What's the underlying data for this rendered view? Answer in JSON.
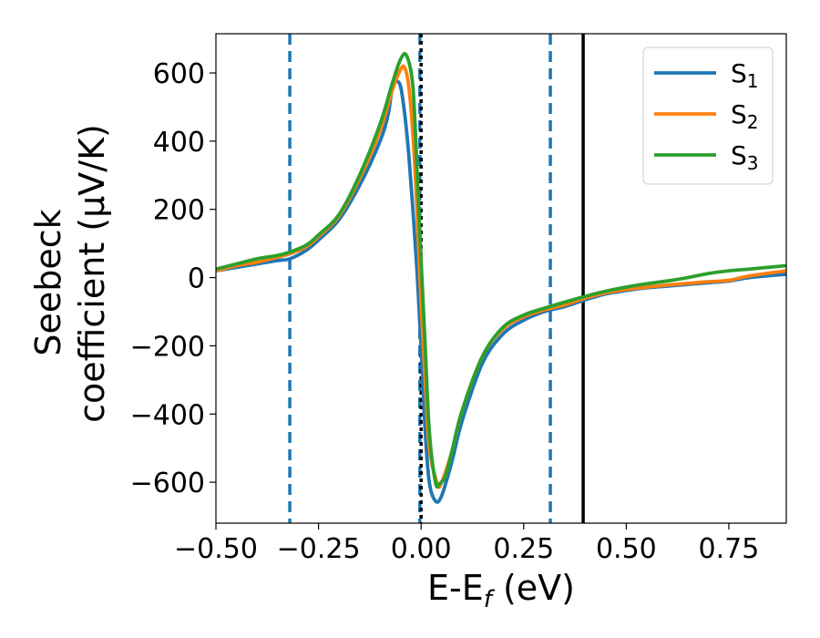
{
  "chart_data": {
    "type": "line",
    "title": "",
    "xlabel": "E-E",
    "xlabel_sub": "f",
    "xlabel_unit": " (eV)",
    "ylabel_line1": "Seebeck",
    "ylabel_line2": "coefficient  (μV/K)",
    "xlim": [
      -0.5,
      0.89
    ],
    "ylim": [
      -720,
      715
    ],
    "xticks": [
      -0.5,
      -0.25,
      0.0,
      0.25,
      0.5,
      0.75
    ],
    "xtick_labels": [
      "−0.50",
      "−0.25",
      "0.00",
      "0.25",
      "0.50",
      "0.75"
    ],
    "yticks": [
      600,
      400,
      200,
      0,
      -200,
      -400,
      -600
    ],
    "ytick_labels": [
      "600",
      "400",
      "200",
      "0",
      "−200",
      "−400",
      "−600"
    ],
    "grid": false,
    "legend_position": "top-right",
    "vlines": [
      {
        "x": -0.32,
        "style": "dashed",
        "color": "#1f77b4"
      },
      {
        "x": 0.315,
        "style": "dashed",
        "color": "#1f77b4"
      },
      {
        "x": -0.003,
        "style": "dashed",
        "color": "#1f77b4"
      },
      {
        "x": 0.0,
        "style": "dotted",
        "color": "#000000"
      },
      {
        "x": 0.395,
        "style": "solid",
        "color": "#000000"
      }
    ],
    "series": [
      {
        "name": "S",
        "sub": "1",
        "color": "#1f77b4",
        "points": [
          [
            -0.5,
            20
          ],
          [
            -0.45,
            30
          ],
          [
            -0.4,
            40
          ],
          [
            -0.35,
            50
          ],
          [
            -0.32,
            55
          ],
          [
            -0.28,
            80
          ],
          [
            -0.25,
            110
          ],
          [
            -0.2,
            170
          ],
          [
            -0.15,
            270
          ],
          [
            -0.1,
            400
          ],
          [
            -0.08,
            480
          ],
          [
            -0.07,
            560
          ],
          [
            -0.06,
            575
          ],
          [
            -0.05,
            560
          ],
          [
            -0.04,
            480
          ],
          [
            -0.03,
            360
          ],
          [
            -0.02,
            200
          ],
          [
            -0.01,
            20
          ],
          [
            0.0,
            -200
          ],
          [
            0.01,
            -450
          ],
          [
            0.02,
            -600
          ],
          [
            0.035,
            -655
          ],
          [
            0.05,
            -640
          ],
          [
            0.075,
            -540
          ],
          [
            0.1,
            -420
          ],
          [
            0.15,
            -250
          ],
          [
            0.2,
            -165
          ],
          [
            0.25,
            -125
          ],
          [
            0.3,
            -100
          ],
          [
            0.35,
            -85
          ],
          [
            0.4,
            -65
          ],
          [
            0.45,
            -48
          ],
          [
            0.5,
            -38
          ],
          [
            0.55,
            -30
          ],
          [
            0.6,
            -25
          ],
          [
            0.65,
            -20
          ],
          [
            0.7,
            -15
          ],
          [
            0.75,
            -10
          ],
          [
            0.8,
            0
          ],
          [
            0.89,
            10
          ]
        ]
      },
      {
        "name": "S",
        "sub": "2",
        "color": "#ff7f0e",
        "points": [
          [
            -0.5,
            20
          ],
          [
            -0.45,
            35
          ],
          [
            -0.4,
            45
          ],
          [
            -0.35,
            60
          ],
          [
            -0.32,
            70
          ],
          [
            -0.28,
            90
          ],
          [
            -0.25,
            120
          ],
          [
            -0.2,
            180
          ],
          [
            -0.15,
            290
          ],
          [
            -0.1,
            430
          ],
          [
            -0.07,
            550
          ],
          [
            -0.05,
            610
          ],
          [
            -0.04,
            615
          ],
          [
            -0.03,
            560
          ],
          [
            -0.02,
            420
          ],
          [
            -0.01,
            200
          ],
          [
            0.0,
            -80
          ],
          [
            0.01,
            -300
          ],
          [
            0.02,
            -500
          ],
          [
            0.04,
            -605
          ],
          [
            0.05,
            -600
          ],
          [
            0.075,
            -510
          ],
          [
            0.1,
            -390
          ],
          [
            0.15,
            -230
          ],
          [
            0.2,
            -150
          ],
          [
            0.25,
            -115
          ],
          [
            0.3,
            -95
          ],
          [
            0.35,
            -80
          ],
          [
            0.4,
            -60
          ],
          [
            0.45,
            -45
          ],
          [
            0.5,
            -35
          ],
          [
            0.55,
            -28
          ],
          [
            0.6,
            -22
          ],
          [
            0.65,
            -17
          ],
          [
            0.7,
            -12
          ],
          [
            0.75,
            -8
          ],
          [
            0.8,
            5
          ],
          [
            0.89,
            20
          ]
        ]
      },
      {
        "name": "S",
        "sub": "3",
        "color": "#2ca02c",
        "points": [
          [
            -0.5,
            25
          ],
          [
            -0.45,
            40
          ],
          [
            -0.4,
            55
          ],
          [
            -0.35,
            65
          ],
          [
            -0.32,
            75
          ],
          [
            -0.28,
            95
          ],
          [
            -0.25,
            125
          ],
          [
            -0.2,
            185
          ],
          [
            -0.15,
            300
          ],
          [
            -0.1,
            450
          ],
          [
            -0.07,
            570
          ],
          [
            -0.05,
            640
          ],
          [
            -0.035,
            650
          ],
          [
            -0.02,
            560
          ],
          [
            -0.01,
            320
          ],
          [
            0.0,
            50
          ],
          [
            0.01,
            -200
          ],
          [
            0.02,
            -450
          ],
          [
            0.035,
            -600
          ],
          [
            0.045,
            -605
          ],
          [
            0.06,
            -580
          ],
          [
            0.075,
            -510
          ],
          [
            0.1,
            -390
          ],
          [
            0.15,
            -230
          ],
          [
            0.2,
            -145
          ],
          [
            0.25,
            -110
          ],
          [
            0.3,
            -90
          ],
          [
            0.35,
            -72
          ],
          [
            0.4,
            -55
          ],
          [
            0.45,
            -40
          ],
          [
            0.5,
            -28
          ],
          [
            0.55,
            -18
          ],
          [
            0.6,
            -10
          ],
          [
            0.65,
            0
          ],
          [
            0.7,
            12
          ],
          [
            0.75,
            20
          ],
          [
            0.8,
            25
          ],
          [
            0.89,
            35
          ]
        ]
      }
    ]
  }
}
